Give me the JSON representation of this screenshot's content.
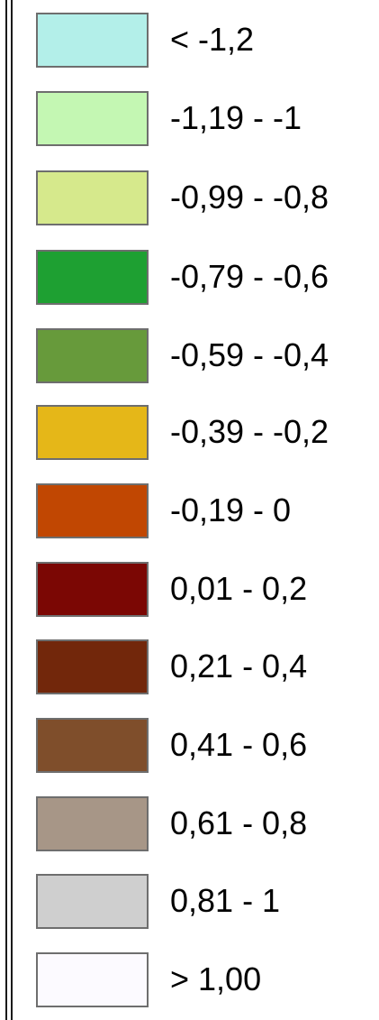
{
  "legend": {
    "items": [
      {
        "label": "< -1,2",
        "color": "#b3efe9"
      },
      {
        "label": "-1,19 - -1",
        "color": "#c4f7b3"
      },
      {
        "label": "-0,99 - -0,8",
        "color": "#d6e98c"
      },
      {
        "label": "-0,79 - -0,6",
        "color": "#1ea032"
      },
      {
        "label": "-0,59 - -0,4",
        "color": "#679a3b"
      },
      {
        "label": "-0,39 - -0,2",
        "color": "#e5b718"
      },
      {
        "label": "-0,19 - 0",
        "color": "#c14702"
      },
      {
        "label": "0,01 - 0,2",
        "color": "#7b0704"
      },
      {
        "label": "0,21 - 0,4",
        "color": "#72270b"
      },
      {
        "label": "0,41 - 0,6",
        "color": "#7f4e2b"
      },
      {
        "label": "0,61 - 0,8",
        "color": "#a79687"
      },
      {
        "label": "0,81 - 1",
        "color": "#cfcfcf"
      },
      {
        "label": "> 1,00",
        "color": "#fcfaff"
      }
    ]
  }
}
